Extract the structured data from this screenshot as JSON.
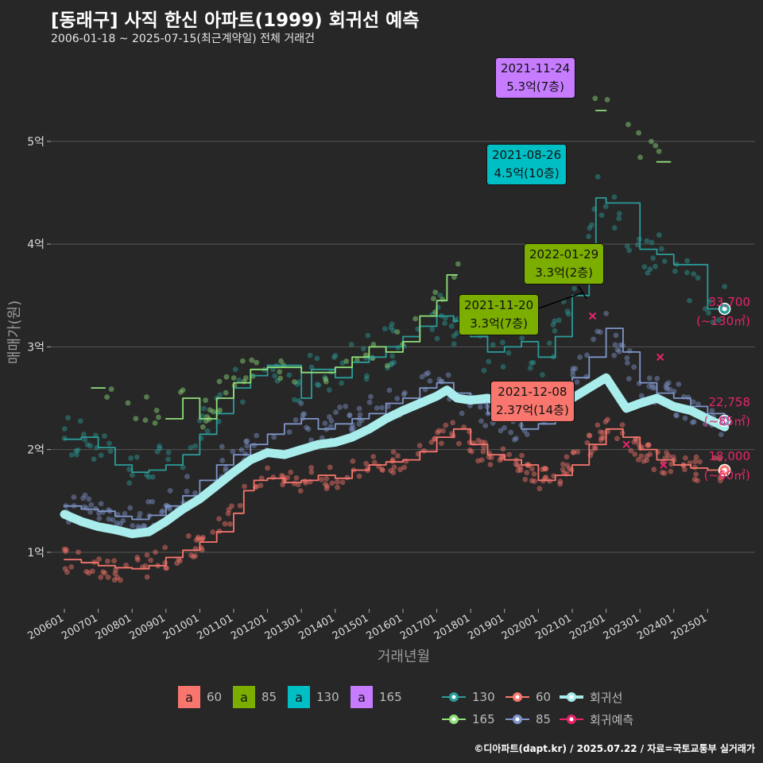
{
  "title": "[동래구] 사직 한신 아파트(1999) 회귀선 예측",
  "subtitle": "2006-01-18 ~ 2025-07-15(최근계약일) 전체 거래건",
  "caption": "©디아파트(dapt.kr) / 2025.07.22 / 자료=국토교통부 실거래가",
  "colors": {
    "bg": "#272727",
    "grid": "#555555",
    "s60": "#f8766d",
    "s85": "#7f95c9",
    "s130": "#2a9d9a",
    "s165": "#8fe07a",
    "trend": "#a8ecec",
    "forecast": "#e8246b",
    "a60": "#f8766d",
    "a85": "#7cae00",
    "a130": "#00bfc4",
    "a165": "#c77cff"
  },
  "chart_data": {
    "type": "scatter",
    "xlabel": "거래년월",
    "ylabel": "매매가(원)",
    "xlim": [
      2005.6,
      2026.4
    ],
    "ylim": [
      0.45,
      5.85
    ],
    "x_ticks": [
      {
        "v": 2006.0,
        "label": "200601"
      },
      {
        "v": 2007.0,
        "label": "200701"
      },
      {
        "v": 2008.0,
        "label": "200801"
      },
      {
        "v": 2009.0,
        "label": "200901"
      },
      {
        "v": 2010.0,
        "label": "201001"
      },
      {
        "v": 2011.0,
        "label": "201101"
      },
      {
        "v": 2012.0,
        "label": "201201"
      },
      {
        "v": 2013.0,
        "label": "201301"
      },
      {
        "v": 2014.0,
        "label": "201401"
      },
      {
        "v": 2015.0,
        "label": "201501"
      },
      {
        "v": 2016.0,
        "label": "201601"
      },
      {
        "v": 2017.0,
        "label": "201701"
      },
      {
        "v": 2018.0,
        "label": "201801"
      },
      {
        "v": 2019.0,
        "label": "201901"
      },
      {
        "v": 2020.0,
        "label": "202001"
      },
      {
        "v": 2021.0,
        "label": "202101"
      },
      {
        "v": 2022.0,
        "label": "202201"
      },
      {
        "v": 2023.0,
        "label": "202301"
      },
      {
        "v": 2024.0,
        "label": "202401"
      },
      {
        "v": 2025.0,
        "label": "202501"
      }
    ],
    "y_ticks": [
      {
        "v": 1,
        "label": "1억"
      },
      {
        "v": 2,
        "label": "2억"
      },
      {
        "v": 3,
        "label": "3억"
      },
      {
        "v": 4,
        "label": "4억"
      },
      {
        "v": 5,
        "label": "5억"
      }
    ],
    "series": [
      {
        "name": "60",
        "key": "s60",
        "points": [
          [
            2006.0,
            0.93
          ],
          [
            2006.5,
            0.9
          ],
          [
            2007.0,
            0.87
          ],
          [
            2007.5,
            0.85
          ],
          [
            2008.0,
            0.84
          ],
          [
            2008.5,
            0.87
          ],
          [
            2009.0,
            0.95
          ],
          [
            2009.5,
            1.02
          ],
          [
            2010.0,
            1.1
          ],
          [
            2010.5,
            1.2
          ],
          [
            2011.0,
            1.38
          ],
          [
            2011.3,
            1.6
          ],
          [
            2011.6,
            1.7
          ],
          [
            2012.0,
            1.72
          ],
          [
            2012.5,
            1.68
          ],
          [
            2013.0,
            1.7
          ],
          [
            2013.5,
            1.75
          ],
          [
            2014.0,
            1.72
          ],
          [
            2014.5,
            1.8
          ],
          [
            2015.0,
            1.85
          ],
          [
            2015.5,
            1.88
          ],
          [
            2016.0,
            1.9
          ],
          [
            2016.5,
            1.98
          ],
          [
            2017.0,
            2.12
          ],
          [
            2017.5,
            2.2
          ],
          [
            2018.0,
            2.05
          ],
          [
            2018.5,
            1.95
          ],
          [
            2019.0,
            1.9
          ],
          [
            2019.5,
            1.85
          ],
          [
            2020.0,
            1.7
          ],
          [
            2020.5,
            1.75
          ],
          [
            2021.0,
            1.85
          ],
          [
            2021.5,
            2.05
          ],
          [
            2022.0,
            2.2
          ],
          [
            2022.5,
            2.12
          ],
          [
            2023.0,
            2.0
          ],
          [
            2023.5,
            1.9
          ],
          [
            2024.0,
            1.85
          ],
          [
            2024.5,
            1.82
          ],
          [
            2025.0,
            1.8
          ],
          [
            2025.5,
            1.8
          ]
        ]
      },
      {
        "name": "85",
        "key": "s85",
        "points": [
          [
            2006.0,
            1.45
          ],
          [
            2006.5,
            1.42
          ],
          [
            2007.0,
            1.4
          ],
          [
            2007.5,
            1.35
          ],
          [
            2008.0,
            1.32
          ],
          [
            2008.5,
            1.36
          ],
          [
            2009.0,
            1.45
          ],
          [
            2009.5,
            1.55
          ],
          [
            2010.0,
            1.7
          ],
          [
            2010.5,
            1.85
          ],
          [
            2011.0,
            1.95
          ],
          [
            2011.5,
            2.05
          ],
          [
            2012.0,
            2.15
          ],
          [
            2012.5,
            2.25
          ],
          [
            2013.0,
            2.3
          ],
          [
            2013.5,
            2.2
          ],
          [
            2014.0,
            2.25
          ],
          [
            2014.5,
            2.3
          ],
          [
            2015.0,
            2.35
          ],
          [
            2015.5,
            2.45
          ],
          [
            2016.0,
            2.5
          ],
          [
            2016.5,
            2.6
          ],
          [
            2017.0,
            2.65
          ],
          [
            2017.5,
            2.55
          ],
          [
            2018.0,
            2.45
          ],
          [
            2018.5,
            2.35
          ],
          [
            2019.0,
            2.3
          ],
          [
            2019.5,
            2.2
          ],
          [
            2020.0,
            2.25
          ],
          [
            2020.5,
            2.45
          ],
          [
            2021.0,
            2.7
          ],
          [
            2021.5,
            2.9
          ],
          [
            2022.0,
            3.18
          ],
          [
            2022.5,
            2.95
          ],
          [
            2023.0,
            2.65
          ],
          [
            2023.5,
            2.55
          ],
          [
            2024.0,
            2.5
          ],
          [
            2024.5,
            2.42
          ],
          [
            2025.0,
            2.35
          ],
          [
            2025.5,
            2.28
          ]
        ]
      },
      {
        "name": "130",
        "key": "s130",
        "points": [
          [
            2006.0,
            2.1
          ],
          [
            2006.5,
            2.12
          ],
          [
            2007.0,
            2.02
          ],
          [
            2007.5,
            1.85
          ],
          [
            2008.0,
            1.78
          ],
          [
            2008.5,
            1.8
          ],
          [
            2009.0,
            1.85
          ],
          [
            2009.5,
            1.95
          ],
          [
            2010.0,
            2.15
          ],
          [
            2010.5,
            2.35
          ],
          [
            2011.0,
            2.6
          ],
          [
            2011.5,
            2.72
          ],
          [
            2012.0,
            2.82
          ],
          [
            2013.0,
            2.5
          ],
          [
            2013.3,
            2.78
          ],
          [
            2014.0,
            2.7
          ],
          [
            2014.5,
            2.85
          ],
          [
            2015.0,
            2.9
          ],
          [
            2015.5,
            3.0
          ],
          [
            2016.0,
            3.1
          ],
          [
            2016.5,
            3.2
          ],
          [
            2017.0,
            3.3
          ],
          [
            2017.5,
            3.25
          ],
          [
            2018.0,
            3.1
          ],
          [
            2018.5,
            2.95
          ],
          [
            2019.0,
            3.0
          ],
          [
            2019.5,
            3.05
          ],
          [
            2020.0,
            2.9
          ],
          [
            2020.5,
            3.1
          ],
          [
            2021.0,
            3.5
          ],
          [
            2021.5,
            4.0
          ],
          [
            2021.7,
            4.45
          ],
          [
            2022.0,
            4.4
          ],
          [
            2023.0,
            3.95
          ],
          [
            2023.5,
            3.9
          ],
          [
            2024.0,
            3.8
          ],
          [
            2025.0,
            3.37
          ],
          [
            2025.5,
            3.37
          ]
        ]
      },
      {
        "name": "165",
        "key": "s165",
        "points": [
          [
            2006.8,
            2.6
          ],
          [
            2007.2,
            2.6
          ],
          [
            2009.0,
            2.3
          ],
          [
            2009.5,
            2.5
          ],
          [
            2010.0,
            2.3
          ],
          [
            2010.5,
            2.5
          ],
          [
            2011.0,
            2.65
          ],
          [
            2011.5,
            2.78
          ],
          [
            2012.0,
            2.8
          ],
          [
            2013.0,
            2.75
          ],
          [
            2014.0,
            2.8
          ],
          [
            2014.5,
            2.9
          ],
          [
            2015.0,
            3.0
          ],
          [
            2015.5,
            2.95
          ],
          [
            2016.0,
            3.05
          ],
          [
            2016.5,
            3.3
          ],
          [
            2017.0,
            3.45
          ],
          [
            2017.3,
            3.7
          ],
          [
            2017.6,
            3.7
          ],
          [
            2021.7,
            5.3
          ],
          [
            2022.0,
            5.3
          ],
          [
            2023.5,
            4.8
          ],
          [
            2023.9,
            4.8
          ]
        ]
      },
      {
        "name": "회귀선",
        "key": "trend",
        "points": [
          [
            2006.0,
            1.37
          ],
          [
            2006.5,
            1.3
          ],
          [
            2007.0,
            1.25
          ],
          [
            2007.5,
            1.22
          ],
          [
            2008.0,
            1.18
          ],
          [
            2008.5,
            1.2
          ],
          [
            2009.0,
            1.3
          ],
          [
            2009.5,
            1.42
          ],
          [
            2010.0,
            1.52
          ],
          [
            2010.5,
            1.65
          ],
          [
            2011.0,
            1.78
          ],
          [
            2011.5,
            1.9
          ],
          [
            2012.0,
            1.97
          ],
          [
            2012.5,
            1.95
          ],
          [
            2013.0,
            2.0
          ],
          [
            2013.5,
            2.05
          ],
          [
            2014.0,
            2.07
          ],
          [
            2014.5,
            2.12
          ],
          [
            2015.0,
            2.2
          ],
          [
            2015.5,
            2.3
          ],
          [
            2016.0,
            2.38
          ],
          [
            2016.5,
            2.45
          ],
          [
            2017.0,
            2.52
          ],
          [
            2017.3,
            2.58
          ],
          [
            2017.6,
            2.5
          ],
          [
            2018.0,
            2.48
          ],
          [
            2018.5,
            2.5
          ],
          [
            2019.0,
            2.45
          ],
          [
            2019.5,
            2.4
          ],
          [
            2020.0,
            2.35
          ],
          [
            2020.5,
            2.4
          ],
          [
            2021.0,
            2.5
          ],
          [
            2021.5,
            2.6
          ],
          [
            2022.0,
            2.7
          ],
          [
            2022.3,
            2.55
          ],
          [
            2022.6,
            2.4
          ],
          [
            2023.0,
            2.45
          ],
          [
            2023.5,
            2.5
          ],
          [
            2024.0,
            2.42
          ],
          [
            2024.5,
            2.38
          ],
          [
            2025.0,
            2.3
          ],
          [
            2025.5,
            2.22
          ]
        ]
      }
    ],
    "scatter_clouds": [
      {
        "key": "s60",
        "center": "s60",
        "spread": 0.12,
        "n": 260
      },
      {
        "key": "s85",
        "center": "s85",
        "spread": 0.16,
        "n": 240
      },
      {
        "key": "s130",
        "center": "s130",
        "spread": 0.22,
        "n": 170
      },
      {
        "key": "s165",
        "center": "s165",
        "spread": 0.15,
        "n": 60
      }
    ],
    "forecast_points": [
      [
        2021.6,
        3.3
      ],
      [
        2023.6,
        2.9
      ],
      [
        2022.6,
        2.05
      ],
      [
        2023.7,
        1.85
      ]
    ],
    "end_markers": [
      {
        "key": "s130",
        "x": 2025.5,
        "y": 3.37
      },
      {
        "key": "s85",
        "x": 2025.5,
        "y": 2.28
      },
      {
        "key": "s60",
        "x": 2025.5,
        "y": 1.8
      }
    ],
    "annotations": [
      {
        "date": "2021-11-24",
        "value": "5.3억(7층)",
        "key": "a165"
      },
      {
        "date": "2021-08-26",
        "value": "4.5억(10층)",
        "key": "a130"
      },
      {
        "date": "2022-01-29",
        "value": "3.3억(2층)",
        "key": "a85"
      },
      {
        "date": "2021-11-20",
        "value": "3.3억(7층)",
        "key": "a85"
      },
      {
        "date": "2021-12-08",
        "value": "2.37억(14층)",
        "key": "a60"
      }
    ],
    "end_labels": [
      {
        "value": "33,700",
        "area": "(~130㎡)"
      },
      {
        "value": "22,758",
        "area": "(~85㎡)"
      },
      {
        "value": "18,000",
        "area": "(~60㎡)"
      }
    ]
  },
  "legend_area": [
    {
      "key": "a60",
      "glyph": "a",
      "label": "60"
    },
    {
      "key": "a85",
      "glyph": "a",
      "label": "85"
    },
    {
      "key": "a130",
      "glyph": "a",
      "label": "130"
    },
    {
      "key": "a165",
      "glyph": "a",
      "label": "165"
    }
  ],
  "legend_series": [
    {
      "key": "s130",
      "label": "130"
    },
    {
      "key": "s60",
      "label": "60"
    },
    {
      "key": "trend",
      "label": "회귀선"
    },
    {
      "key": "s165",
      "label": "165"
    },
    {
      "key": "s85",
      "label": "85"
    },
    {
      "key": "forecast",
      "label": "회귀예측"
    }
  ]
}
